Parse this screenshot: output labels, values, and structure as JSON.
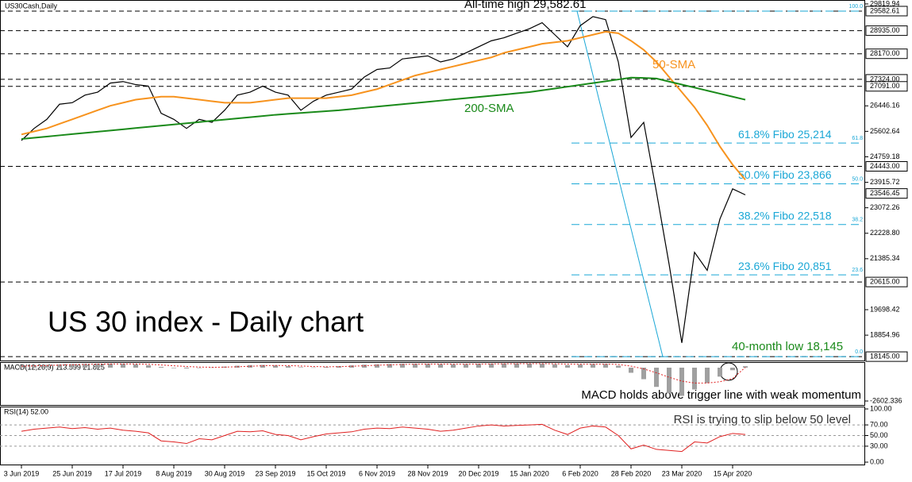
{
  "chart_data": [
    {
      "type": "line",
      "title": "US 30 index - Daily chart",
      "symbol": "US30Cash,Daily",
      "categories": [
        "3 Jun 2019",
        null,
        null,
        null,
        "25 Jun 2019",
        null,
        null,
        null,
        "17 Jul 2019",
        null,
        null,
        null,
        "8 Aug 2019",
        null,
        null,
        null,
        "30 Aug 2019",
        null,
        null,
        null,
        "23 Sep 2019",
        null,
        null,
        null,
        "15 Oct 2019",
        null,
        null,
        null,
        "6 Nov 2019",
        null,
        null,
        null,
        "28 Nov 2019",
        null,
        null,
        null,
        "20 Dec 2019",
        null,
        null,
        null,
        "15 Jan 2020",
        null,
        null,
        null,
        "6 Feb 2020",
        null,
        null,
        null,
        "28 Feb 2020",
        null,
        null,
        null,
        "23 Mar 2020",
        null,
        null,
        null,
        "15 Apr 2020",
        null
      ],
      "series": [
        {
          "color": "#000000",
          "values": [
            25300,
            25700,
            26000,
            26500,
            26550,
            26800,
            26900,
            27200,
            27250,
            27150,
            27100,
            26200,
            26000,
            25700,
            26000,
            25900,
            26300,
            26800,
            26900,
            27100,
            26900,
            26800,
            26300,
            26600,
            26800,
            26900,
            27000,
            27400,
            27650,
            27700,
            28000,
            28050,
            28100,
            27900,
            28000,
            28200,
            28400,
            28600,
            28700,
            28850,
            29000,
            29200,
            28800,
            28400,
            29100,
            29400,
            29300,
            27900,
            25400,
            25900,
            23600,
            21200,
            18600,
            21600,
            21000,
            22700,
            23700,
            23500
          ]
        },
        {
          "name": "50-SMA",
          "color": "#f7931e",
          "values": [
            25500,
            25600,
            25700,
            25850,
            26000,
            26150,
            26300,
            26450,
            26550,
            26650,
            26700,
            26750,
            26750,
            26700,
            26650,
            26600,
            26550,
            26550,
            26550,
            26600,
            26650,
            26700,
            26700,
            26700,
            26700,
            26750,
            26800,
            26900,
            27000,
            27150,
            27300,
            27450,
            27550,
            27650,
            27750,
            27850,
            27950,
            28050,
            28200,
            28300,
            28400,
            28500,
            28550,
            28600,
            28700,
            28800,
            28900,
            28850,
            28600,
            28300,
            27900,
            27400,
            26900,
            26400,
            25800,
            25100,
            24500,
            24000
          ]
        },
        {
          "name": "200-SMA",
          "color": "#1a8a1a",
          "values": [
            25350,
            25390,
            25430,
            25470,
            25510,
            25550,
            25590,
            25630,
            25670,
            25710,
            25750,
            25790,
            25830,
            25870,
            25910,
            25950,
            25990,
            26030,
            26070,
            26110,
            26150,
            26180,
            26210,
            26240,
            26270,
            26300,
            26340,
            26380,
            26420,
            26460,
            26500,
            26540,
            26580,
            26620,
            26660,
            26700,
            26740,
            26780,
            26820,
            26860,
            26900,
            26960,
            27020,
            27080,
            27140,
            27200,
            27260,
            27320,
            27380,
            27370,
            27350,
            27250,
            27150,
            27050,
            26950,
            26850,
            26750,
            26650
          ]
        }
      ],
      "ylim": [
        17990,
        29950
      ],
      "yticks": [
        29819.94,
        26446.16,
        25602.64,
        24759.18,
        23915.72,
        23072.26,
        {
          "value": 22228.8,
          "label": "22228.80"
        },
        21385.34,
        19698.42,
        18854.96
      ],
      "levels": [
        {
          "value": 29582.61,
          "label": "29582.61"
        },
        {
          "value": 28935,
          "label": "28935.00"
        },
        {
          "value": 28170,
          "label": "28170.00"
        },
        {
          "value": 27324,
          "label": "27324.00"
        },
        {
          "value": 27091,
          "label": "27091.00"
        },
        {
          "value": 24443,
          "label": "24443.00"
        },
        {
          "value": 20615,
          "label": "20615.00"
        },
        {
          "value": 18145,
          "label": "18145.00"
        }
      ],
      "current": {
        "value": 23546.45,
        "label": "23546.45"
      },
      "fibo": [
        {
          "value": 29582.61,
          "ratio": "100.0"
        },
        {
          "value": 25214,
          "ratio": "61.8",
          "label": "61.8% Fibo 25,214"
        },
        {
          "value": 23866,
          "ratio": "50.0",
          "label": "50.0% Fibo 23,866"
        },
        {
          "value": 22518,
          "ratio": "38.2",
          "label": "38.2% Fibo 22,518"
        },
        {
          "value": 20851,
          "ratio": "23.6",
          "label": "23.6% Fibo 20,851"
        },
        {
          "value": 18145,
          "ratio": "0.0"
        }
      ],
      "annotations": [
        "All-time high 29,582.61",
        "40-month low 18,145"
      ]
    },
    {
      "type": "bar",
      "title": "MACD(12,26,9) 113.599 21.825",
      "series": [
        {
          "color": "#a0a0a0",
          "values": [
            150,
            180,
            220,
            250,
            270,
            290,
            300,
            310,
            300,
            260,
            180,
            60,
            -40,
            -60,
            -20,
            20,
            80,
            150,
            200,
            210,
            180,
            120,
            40,
            20,
            60,
            120,
            180,
            230,
            260,
            280,
            300,
            300,
            290,
            270,
            260,
            280,
            300,
            310,
            320,
            320,
            310,
            300,
            260,
            200,
            240,
            280,
            290,
            150,
            -400,
            -900,
            -1500,
            -2000,
            -2200,
            -1700,
            -1200,
            -700,
            -200,
            113.599
          ]
        },
        {
          "color": "#e02020",
          "style": "dotted",
          "values": [
            120,
            140,
            170,
            200,
            230,
            250,
            270,
            285,
            290,
            285,
            260,
            210,
            150,
            90,
            50,
            30,
            40,
            70,
            110,
            150,
            170,
            160,
            130,
            90,
            70,
            80,
            110,
            150,
            190,
            220,
            250,
            270,
            280,
            280,
            275,
            275,
            280,
            290,
            300,
            305,
            310,
            310,
            300,
            280,
            270,
            270,
            275,
            250,
            120,
            -100,
            -400,
            -750,
            -1050,
            -1200,
            -1200,
            -1100,
            -850,
            21.825
          ]
        }
      ],
      "ylim": [
        -2912,
        372
      ],
      "yticks": [
        -2602.336
      ],
      "annotations": [
        "MACD holds above trigger line with weak momentum"
      ]
    },
    {
      "type": "line",
      "title": "RSI(14) 52.00",
      "series": [
        {
          "color": "#e02020",
          "values": [
            58,
            62,
            64,
            66,
            63,
            65,
            62,
            64,
            60,
            58,
            55,
            40,
            38,
            35,
            44,
            42,
            50,
            58,
            57,
            59,
            52,
            50,
            42,
            48,
            53,
            55,
            57,
            62,
            64,
            63,
            66,
            64,
            62,
            58,
            60,
            64,
            68,
            70,
            68,
            69,
            70,
            71,
            60,
            52,
            64,
            68,
            66,
            50,
            25,
            32,
            24,
            22,
            20,
            38,
            36,
            48,
            54,
            52
          ]
        }
      ],
      "ylim": [
        0,
        100
      ],
      "yticks": [
        {
          "value": 100,
          "label": "100.00"
        },
        {
          "value": 70,
          "label": "70.00"
        },
        {
          "value": 50,
          "label": "50.00"
        },
        {
          "value": 30,
          "label": "30.00"
        },
        {
          "value": 0,
          "label": "0.00"
        }
      ],
      "annotations": [
        "RSI is trying to slip below 50 level"
      ]
    }
  ]
}
